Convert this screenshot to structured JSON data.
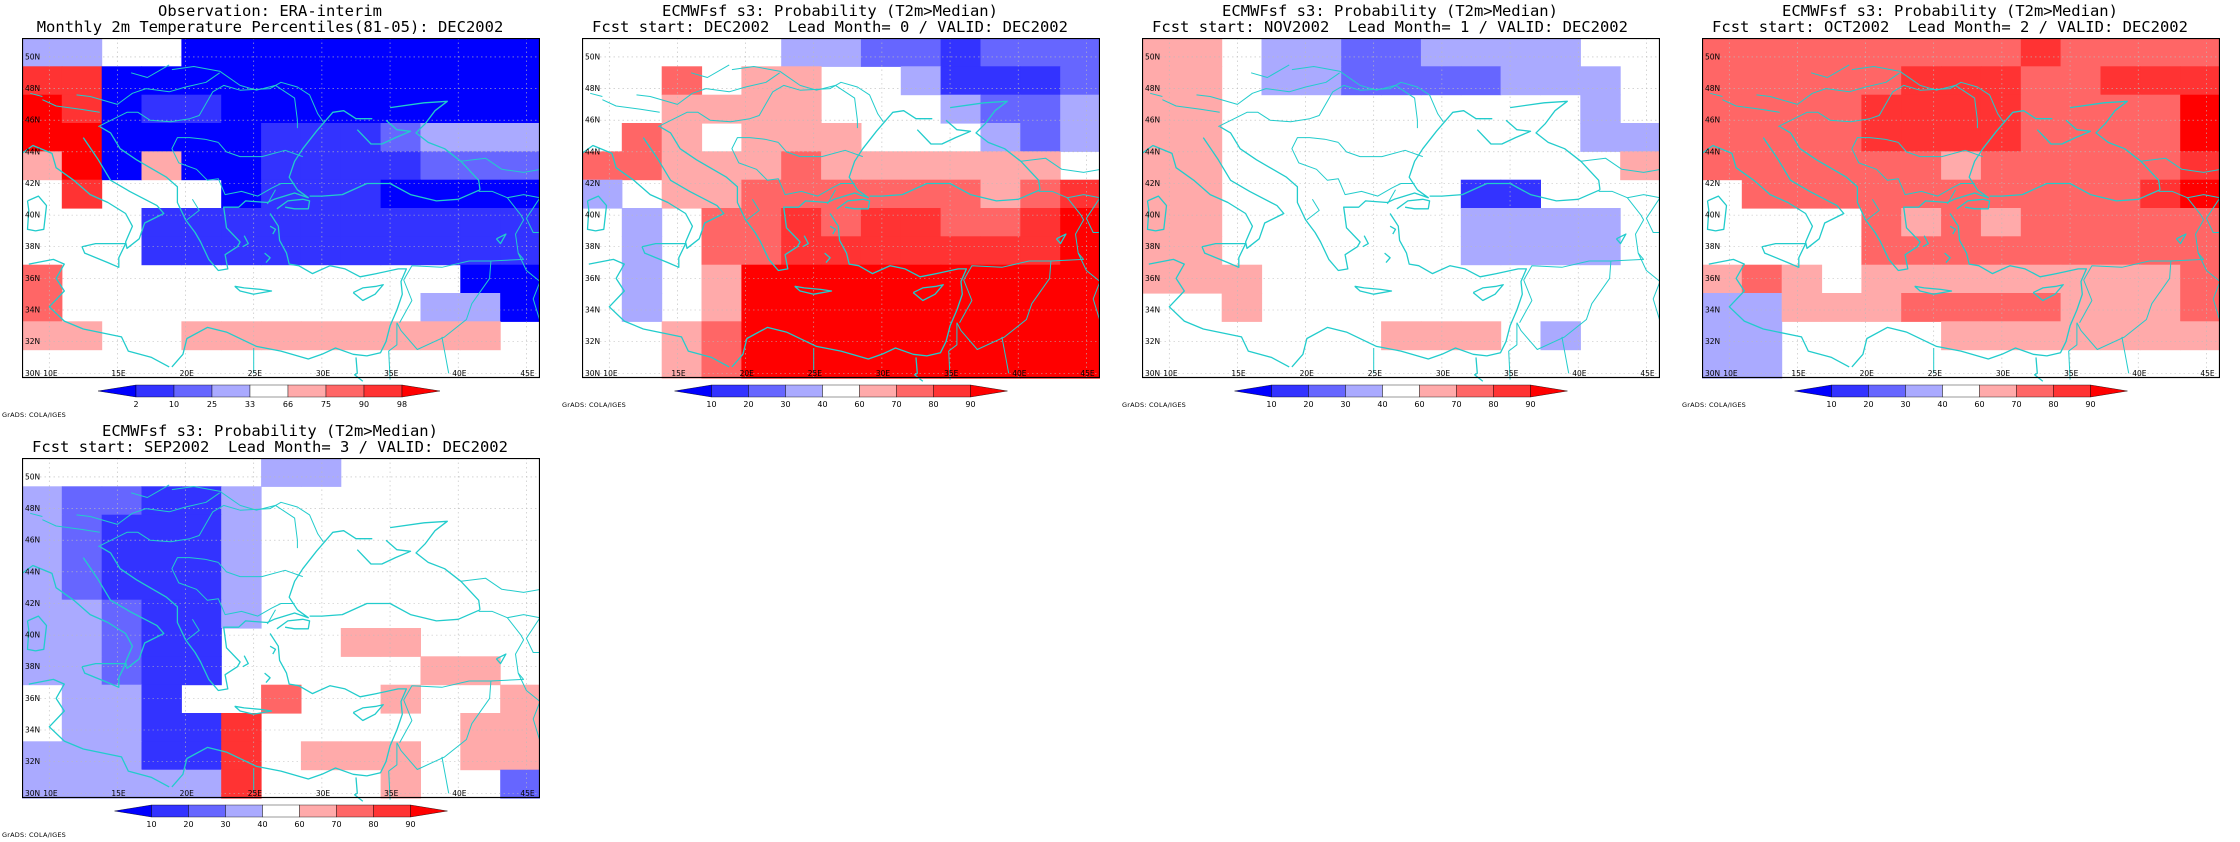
{
  "page": {
    "credit": "GrADS: COLA/IGES"
  },
  "axes": {
    "lon_labels": [
      "10E",
      "15E",
      "20E",
      "25E",
      "30E",
      "35E",
      "40E",
      "45E"
    ],
    "lat_labels": [
      "30N",
      "32N",
      "34N",
      "36N",
      "38N",
      "40N",
      "42N",
      "44N",
      "46N",
      "48N",
      "50N"
    ],
    "lon_range": [
      8,
      46
    ],
    "lat_range": [
      29.7,
      51.2
    ]
  },
  "colors": {
    "coast": "#22cccc",
    "grid": "#bbbbbb",
    "obs_bins": [
      "#0000ff",
      "#3333ff",
      "#6666ff",
      "#aaaaff",
      "#ffffff",
      "#ffaaaa",
      "#ff6666",
      "#ff3333",
      "#ff0000"
    ],
    "prob_bins": [
      "#0000ff",
      "#3333ff",
      "#6666ff",
      "#aaaaff",
      "#ffffff",
      "#ffaaaa",
      "#ff6666",
      "#ff3333",
      "#ff0000"
    ]
  },
  "panels": [
    {
      "title_line1": "Observation: ERA-interim",
      "title_line2": "Monthly 2m Temperature Percentiles(81-05): DEC2002",
      "colorbar": [
        "2",
        "10",
        "25",
        "33",
        "66",
        "75",
        "90",
        "98"
      ]
    },
    {
      "title_line1": "ECMWFsf s3: Probability (T2m>Median)",
      "title_line2": "Fcst start: DEC2002  Lead Month= 0 / VALID: DEC2002",
      "colorbar": [
        "10",
        "20",
        "30",
        "40",
        "60",
        "70",
        "80",
        "90"
      ]
    },
    {
      "title_line1": "ECMWFsf s3: Probability (T2m>Median)",
      "title_line2": "Fcst start: NOV2002  Lead Month= 1 / VALID: DEC2002",
      "colorbar": [
        "10",
        "20",
        "30",
        "40",
        "60",
        "70",
        "80",
        "90"
      ]
    },
    {
      "title_line1": "ECMWFsf s3: Probability (T2m>Median)",
      "title_line2": "Fcst start: OCT2002  Lead Month= 2 / VALID: DEC2002",
      "colorbar": [
        "10",
        "20",
        "30",
        "40",
        "60",
        "70",
        "80",
        "90"
      ]
    },
    {
      "title_line1": "ECMWFsf s3: Probability (T2m>Median)",
      "title_line2": "Fcst start: SEP2002  Lead Month= 3 / VALID: DEC2002",
      "colorbar": [
        "10",
        "20",
        "30",
        "40",
        "60",
        "70",
        "80",
        "90"
      ]
    }
  ],
  "chart_data": [
    {
      "type": "heatmap",
      "title": "Observation: ERA-interim / Monthly 2m Temperature Percentiles(81-05): DEC2002",
      "grid_rows_north_to_south": [
        "3344000000000",
        "7700000000000",
        "8701100000000",
        "8800001112333",
        "5805001111222",
        "4744401110000",
        "4441111111111",
        "4441111111111",
        "6444444444400",
        "6444444444330",
        "5544555555554",
        "4444444444444"
      ],
      "bin_scale": "0=<2 1=2-10 2=10-25 3=25-33 4=33-66 5=66-75 6=75-90 7=90-98 8=>98"
    },
    {
      "type": "heatmap",
      "title": "ECMWFsf s3: Probability (T2m>Median) Lead Month= 0",
      "grid_rows_north_to_south": [
        "4444433221222",
        "4464554431112",
        "4455554443223",
        "4654555444323",
        "6655565555554",
        "3455666666567",
        "4346676776678",
        "4346677777778",
        "4345888888888",
        "4345888888888",
        "4456888888888",
        "4456888888888"
      ],
      "bin_scale": "0=<10 1=10-20 2=20-30 3=30-40 4=40-60 5=60-70 6=70-80 7=80-90 8=>90"
    },
    {
      "type": "heatmap",
      "title": "ECMWFsf s3: Probability (T2m>Median) Lead Month= 1",
      "grid_rows_north_to_south": [
        "5543322333344",
        "5543322223334",
        "5544444444434",
        "5544444444433",
        "5544444444445",
        "5544444411444",
        "5544444433334",
        "5544444433334",
        "5554444444444",
        "4454444444444",
        "4444445554344",
        "4444444444444"
      ],
      "bin_scale": "0=<10 1=10-20 2=20-30 3=30-40 4=40-60 5=60-70 6=70-80 7=80-90 8=>90"
    },
    {
      "type": "heatmap",
      "title": "ECMWFsf s3: Probability (T2m>Median) Lead Month= 2",
      "grid_rows_north_to_south": [
        "6666666676666",
        "6666677766777",
        "6666777766668",
        "6666777766668",
        "6666665666667",
        "4666666666678",
        "4444656566666",
        "4444666666666",
        "5654555555556",
        "3355566665556",
        "3344445555555",
        "3344444444444"
      ],
      "bin_scale": "0=<10 1=10-20 2=20-30 3=30-40 4=40-60 5=60-70 6=70-80 7=80-90 8=>90"
    },
    {
      "type": "heatmap",
      "title": "ECMWFsf s3: Probability (T2m>Median) Lead Month= 3",
      "grid_rows_north_to_south": [
        "4444443344444",
        "3221134444444",
        "3211134444444",
        "3211134444444",
        "3211134444444",
        "3321134444444",
        "3321144455444",
        "3321144444554",
        "4331446445445",
        "4331174444455",
        "3331174555455",
        "3333374445442"
      ],
      "bin_scale": "0=<10 1=10-20 2=20-30 3=30-40 4=40-60 5=60-70 6=70-80 7=80-90 8=>90"
    }
  ]
}
